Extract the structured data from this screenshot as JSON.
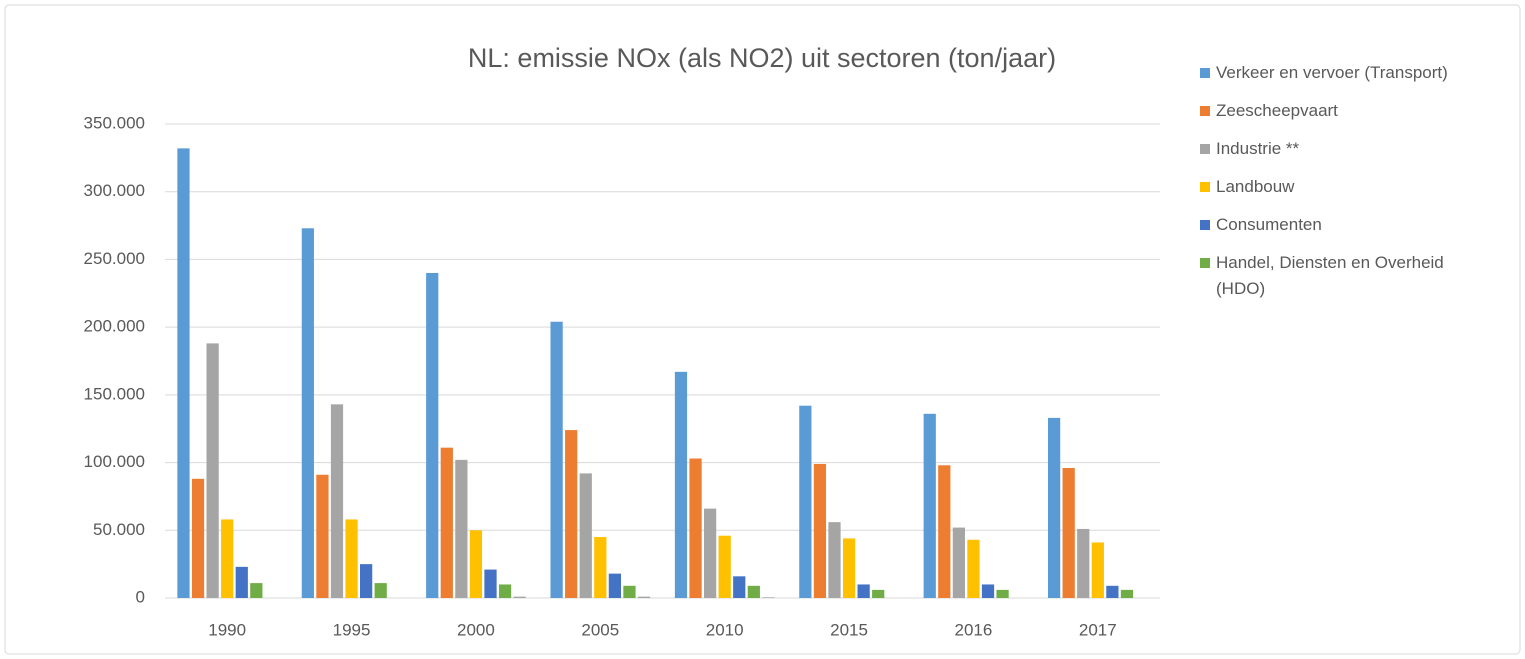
{
  "chart_data": {
    "type": "bar",
    "title": "NL: emissie NOx (als NO2) uit sectoren (ton/jaar)",
    "categories": [
      "1990",
      "1995",
      "2000",
      "2005",
      "2010",
      "2015",
      "2016",
      "2017"
    ],
    "series": [
      {
        "name": "Verkeer en vervoer (Transport)",
        "color": "#5b9bd5",
        "values": [
          332000,
          273000,
          240000,
          204000,
          167000,
          142000,
          136000,
          133000
        ]
      },
      {
        "name": "Zeescheepvaart",
        "color": "#ed7d31",
        "values": [
          88000,
          91000,
          111000,
          124000,
          103000,
          99000,
          98000,
          96000
        ]
      },
      {
        "name": "Industrie **",
        "color": "#a5a5a5",
        "values": [
          188000,
          143000,
          102000,
          92000,
          66000,
          56000,
          52000,
          51000
        ]
      },
      {
        "name": "Landbouw",
        "color": "#ffc000",
        "values": [
          58000,
          58000,
          50000,
          45000,
          46000,
          44000,
          43000,
          41000
        ]
      },
      {
        "name": "Consumenten",
        "color": "#4472c4",
        "values": [
          23000,
          25000,
          21000,
          18000,
          16000,
          10000,
          10000,
          9000
        ]
      },
      {
        "name": "Handel, Diensten en Overheid (HDO)",
        "color": "#70ad47",
        "values": [
          11000,
          11000,
          10000,
          9000,
          9000,
          6000,
          6000,
          6000
        ]
      },
      {
        "color": "#a5a5a5",
        "values": [
          0,
          0,
          1000,
          1000,
          500,
          0,
          0,
          0
        ]
      }
    ],
    "ylim": [
      0,
      350000
    ],
    "yticks": [
      0,
      {
        "value": 50000,
        "label": "50.000"
      },
      {
        "value": 100000,
        "label": "100.000"
      },
      {
        "value": 150000,
        "label": "150.000"
      },
      {
        "value": 200000,
        "label": "200.000"
      },
      {
        "value": 250000,
        "label": "250.000"
      },
      {
        "value": 300000,
        "label": "300.000"
      },
      {
        "value": 350000,
        "label": "350.000"
      }
    ],
    "grid": true,
    "legend": "right"
  }
}
